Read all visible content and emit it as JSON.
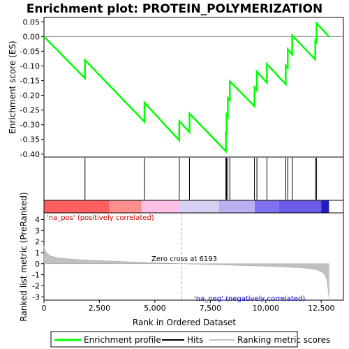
{
  "chart_data": {
    "type": "line",
    "title": "Enrichment plot: PROTEIN_POLYMERIZATION",
    "top_panel": {
      "ylabel": "Enrichment score (ES)",
      "ylim": [
        -0.41,
        0.065
      ],
      "yticks": [
        0.05,
        0.0,
        -0.05,
        -0.1,
        -0.15,
        -0.2,
        -0.25,
        -0.3,
        -0.35,
        -0.4
      ],
      "ytick_labels": [
        "0.05",
        "0.00",
        "-0.05",
        "-0.10",
        "-0.15",
        "-0.20",
        "-0.25",
        "-0.30",
        "-0.35",
        "-0.40"
      ],
      "grid": false,
      "series": [
        {
          "name": "Enrichment profile",
          "color": "#00ff00",
          "x": [
            0,
            1850,
            1851,
            4530,
            4531,
            6100,
            6101,
            6560,
            6561,
            8200,
            8201,
            8230,
            8231,
            8290,
            8291,
            8380,
            8381,
            9490,
            9491,
            9600,
            9601,
            10050,
            10051,
            10900,
            10901,
            10990,
            10991,
            11190,
            11191,
            12230,
            12231,
            12290,
            12291,
            12850
          ],
          "values": [
            0.0,
            -0.142,
            -0.08,
            -0.29,
            -0.225,
            -0.353,
            -0.288,
            -0.325,
            -0.262,
            -0.39,
            -0.328,
            -0.328,
            -0.265,
            -0.272,
            -0.208,
            -0.215,
            -0.152,
            -0.237,
            -0.173,
            -0.183,
            -0.12,
            -0.157,
            -0.094,
            -0.162,
            -0.098,
            -0.106,
            -0.043,
            -0.061,
            0.004,
            -0.078,
            -0.014,
            -0.02,
            0.045,
            0.0
          ]
        }
      ]
    },
    "hits": [
      1850,
      4530,
      6100,
      6560,
      8200,
      8230,
      8290,
      8380,
      9490,
      9600,
      10050,
      10900,
      10990,
      11190,
      12230,
      12290
    ],
    "heatmap_bar": {
      "segments": [
        {
          "start": 0,
          "end": 2950,
          "color": "#ff5f5f"
        },
        {
          "start": 2950,
          "end": 4400,
          "color": "#ff8f8f"
        },
        {
          "start": 4400,
          "end": 6100,
          "color": "#ffc0e8"
        },
        {
          "start": 6100,
          "end": 7900,
          "color": "#d8d0f4"
        },
        {
          "start": 7900,
          "end": 9500,
          "color": "#b8b0f0"
        },
        {
          "start": 9500,
          "end": 10600,
          "color": "#7f72f0"
        },
        {
          "start": 10600,
          "end": 12500,
          "color": "#6a5ce8"
        },
        {
          "start": 12500,
          "end": 12850,
          "color": "#2020c0"
        }
      ]
    },
    "bottom_panel": {
      "xlabel": "Rank in Ordered Dataset",
      "ylabel": "Ranked list metric (PreRanked)",
      "ylim": [
        -3.3,
        4.6
      ],
      "yticks": [
        4,
        3,
        2,
        1,
        0,
        -1,
        -2,
        -3
      ],
      "ytick_labels": [
        "4",
        "3",
        "2",
        "1",
        "0",
        "-1",
        "-2",
        "-3"
      ],
      "x_range": [
        0,
        13500
      ],
      "xticks": [
        0,
        2500,
        5000,
        7500,
        10000,
        12500
      ],
      "xtick_labels": [
        "0",
        "2,500",
        "5,000",
        "7,500",
        "10,000",
        "12,500"
      ],
      "metric_x": [
        0,
        50,
        150,
        300,
        600,
        1000,
        1500,
        2000,
        3000,
        4000,
        5000,
        6193,
        7000,
        8000,
        9000,
        10000,
        10800,
        11500,
        12000,
        12300,
        12500,
        12650,
        12750,
        12800,
        12850
      ],
      "metric_values": [
        1.6,
        1.2,
        0.9,
        0.7,
        0.55,
        0.45,
        0.38,
        0.32,
        0.24,
        0.16,
        0.08,
        0.0,
        -0.05,
        -0.11,
        -0.17,
        -0.23,
        -0.29,
        -0.36,
        -0.45,
        -0.56,
        -0.72,
        -0.95,
        -1.4,
        -2.2,
        -3.1
      ],
      "zero_cross_rank": 6193,
      "annotation_zero": "Zero cross at 6193",
      "annotation_pos": "'na_pos' (positively correlated)",
      "annotation_neg": "'na_neg' (negatively correlated)"
    },
    "legend": [
      {
        "label": "Enrichment profile",
        "color": "#00ff00"
      },
      {
        "label": "Hits",
        "color": "#000000"
      },
      {
        "label": "Ranking metric scores",
        "color": "#c0c0c0"
      }
    ],
    "colors": {
      "profile": "#00ff00",
      "hit": "#000000",
      "metric_fill": "#c0c0c0",
      "pos_label": "#cc0000",
      "neg_label": "#0000cc"
    }
  }
}
